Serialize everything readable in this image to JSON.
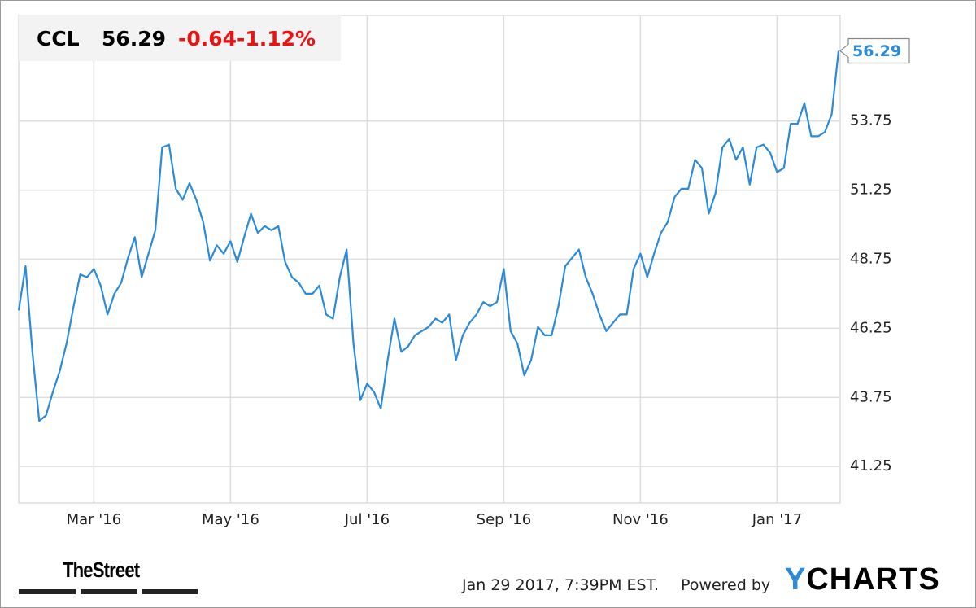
{
  "chart_data": {
    "type": "line",
    "header": {
      "ticker": "CCL",
      "change": "-0.64",
      "change_percent": "-1.12%"
    },
    "categories": [
      null,
      null,
      null,
      null,
      null,
      null,
      null,
      null,
      null,
      null,
      null,
      "Mar '16",
      null,
      null,
      null,
      null,
      null,
      null,
      null,
      null,
      null,
      null,
      null,
      null,
      null,
      null,
      null,
      null,
      null,
      null,
      null,
      "May '16",
      null,
      null,
      null,
      null,
      null,
      null,
      null,
      null,
      null,
      null,
      null,
      null,
      null,
      null,
      null,
      null,
      null,
      null,
      null,
      "Jul '16",
      null,
      null,
      null,
      null,
      null,
      null,
      null,
      null,
      null,
      null,
      null,
      null,
      null,
      null,
      null,
      null,
      null,
      null,
      null,
      "Sep '16",
      null,
      null,
      null,
      null,
      null,
      null,
      null,
      null,
      null,
      null,
      null,
      null,
      null,
      null,
      null,
      null,
      null,
      null,
      null,
      "Nov '16",
      null,
      null,
      null,
      null,
      null,
      null,
      null,
      null,
      null,
      null,
      null,
      null,
      null,
      null,
      null,
      null,
      null,
      null,
      null,
      "Jan '17",
      null,
      null,
      null,
      null,
      null,
      null,
      null,
      null,
      null
    ],
    "series": [
      {
        "name": "CCL",
        "color": "#2b8ad9",
        "values": [
          46.9,
          48.5,
          45.4,
          42.9,
          43.1,
          43.95,
          44.7,
          45.7,
          47.0,
          48.2,
          48.1,
          48.4,
          47.8,
          46.75,
          47.5,
          47.9,
          48.8,
          49.55,
          48.1,
          48.95,
          49.8,
          52.8,
          52.9,
          51.3,
          50.9,
          51.5,
          50.9,
          50.1,
          48.7,
          49.25,
          48.95,
          49.4,
          48.65,
          49.55,
          50.4,
          49.7,
          49.95,
          49.8,
          49.95,
          48.65,
          48.1,
          47.9,
          47.5,
          47.5,
          47.8,
          46.75,
          46.6,
          48.1,
          49.1,
          45.7,
          43.65,
          44.25,
          43.95,
          43.35,
          45.1,
          46.6,
          45.4,
          45.6,
          46.0,
          46.15,
          46.3,
          46.6,
          46.45,
          46.75,
          45.1,
          46.0,
          46.45,
          46.75,
          47.2,
          47.05,
          47.2,
          48.4,
          46.15,
          45.7,
          44.55,
          45.1,
          46.3,
          46.0,
          46.0,
          47.05,
          48.5,
          48.8,
          49.1,
          48.1,
          47.5,
          46.75,
          46.15,
          46.45,
          46.75,
          46.75,
          48.4,
          48.95,
          48.1,
          48.95,
          49.7,
          50.1,
          51.0,
          51.3,
          51.3,
          52.35,
          52.05,
          50.4,
          51.15,
          52.8,
          53.1,
          52.35,
          52.8,
          51.45,
          52.8,
          52.9,
          52.6,
          51.9,
          52.05,
          53.65,
          53.65,
          54.4,
          53.2,
          53.2,
          53.35,
          54.0,
          56.29
        ]
      }
    ],
    "ylim": [
      39.93,
      57.57
    ],
    "yticks": [
      41.25,
      43.75,
      46.25,
      48.75,
      51.25,
      53.75
    ],
    "grid": true
  },
  "footer": {
    "brand": "TheStreet",
    "timestamp": "Jan 29 2017, 7:39PM EST.",
    "powered_by": "Powered by",
    "logo": "YCHARTS"
  }
}
